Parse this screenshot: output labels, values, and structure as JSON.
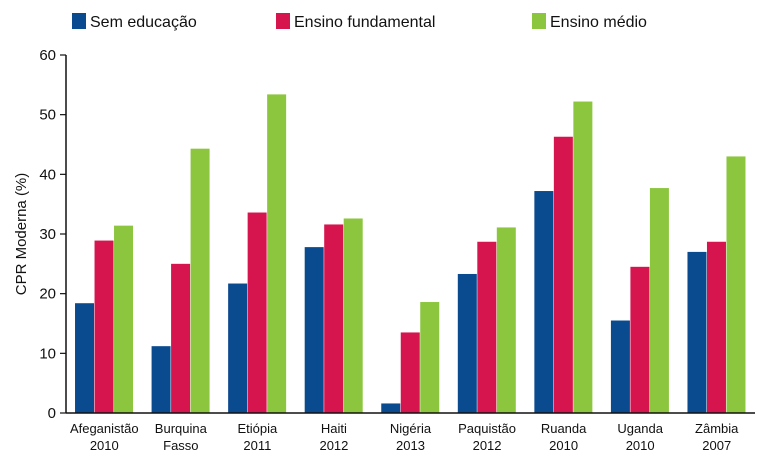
{
  "chart_data": {
    "type": "bar",
    "categories": [
      [
        "Afeganistão",
        "2010"
      ],
      [
        "Burquina",
        "Fasso"
      ],
      [
        "Etiópia",
        "2011"
      ],
      [
        "Haiti",
        "2012"
      ],
      [
        "Nigéria",
        "2013"
      ],
      [
        "Paquistão",
        "2012"
      ],
      [
        "Ruanda",
        "2010"
      ],
      [
        "Uganda",
        "2010"
      ],
      [
        "Zâmbia",
        "2007"
      ]
    ],
    "series": [
      {
        "name": "Sem educação",
        "color": "#0a4a8f",
        "values": [
          18.4,
          11.2,
          21.7,
          27.8,
          1.6,
          23.3,
          37.2,
          15.5,
          27.0
        ]
      },
      {
        "name": "Ensino fundamental",
        "color": "#d6154e",
        "values": [
          28.9,
          25.0,
          33.6,
          31.6,
          13.5,
          28.7,
          46.3,
          24.5,
          28.7
        ]
      },
      {
        "name": "Ensino médio",
        "color": "#8cc63f",
        "values": [
          31.4,
          44.3,
          53.4,
          32.6,
          18.6,
          31.1,
          52.2,
          37.7,
          43.0
        ]
      }
    ],
    "ylabel": "CPR Moderna (%)",
    "xlabel": "",
    "title": "",
    "ylim": [
      0,
      60
    ],
    "yticks": [
      0,
      10,
      20,
      30,
      40,
      50,
      60
    ],
    "grid": false,
    "legend_position": "top"
  }
}
